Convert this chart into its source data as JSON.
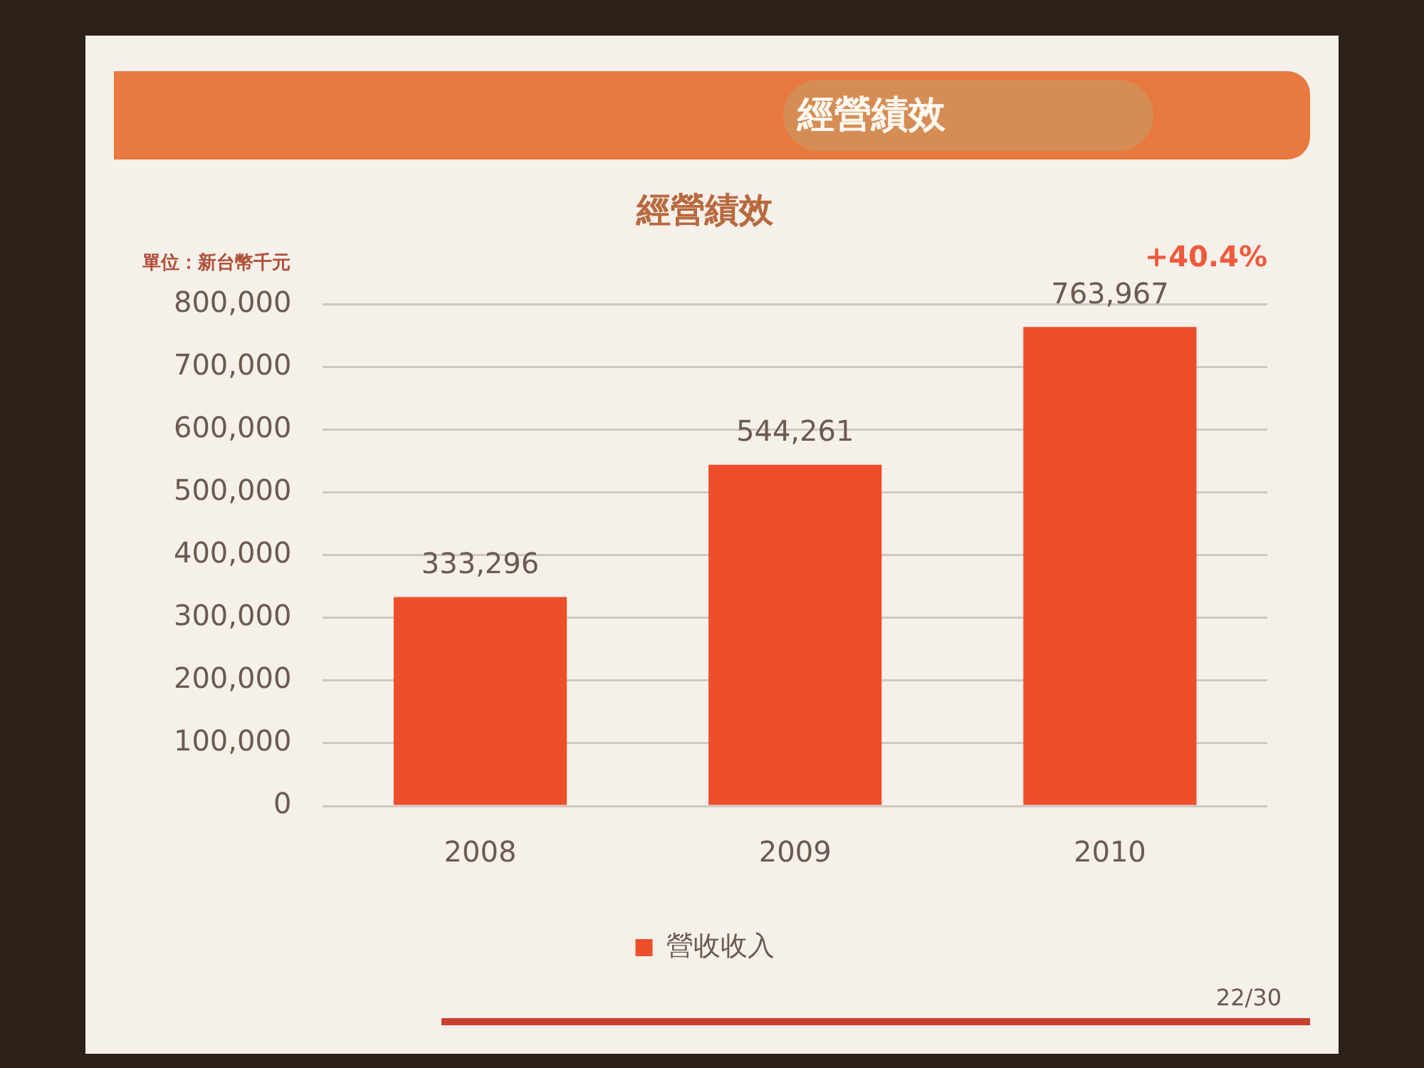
{
  "chart_data": {
    "type": "bar",
    "title": "經營績效",
    "subtitle": "經營績效",
    "ylabel": "單位：新台幣千元",
    "categories": [
      "2008",
      "2009",
      "2010"
    ],
    "series": [
      {
        "name": "營收收入",
        "color": "#ee4f2a",
        "values": [
          333296,
          544261,
          763967
        ],
        "value_labels": [
          "333,296",
          "544,261",
          "763,967"
        ]
      }
    ],
    "ylim": [
      0,
      800000
    ],
    "yticks": [
      0,
      {
        "value": 100000,
        "label": "100,000"
      },
      {
        "value": 200000,
        "label": "200,000"
      },
      {
        "value": 300000,
        "label": "300,000"
      },
      {
        "value": 400000,
        "label": "400,000"
      },
      {
        "value": 500000,
        "label": "500,000"
      },
      {
        "value": 600000,
        "label": "600,000"
      },
      {
        "value": 700000,
        "label": "700,000"
      },
      {
        "value": 800000,
        "label": "800,000"
      }
    ],
    "grid": "y",
    "legend": "bottom",
    "annotations": [
      "+40.4%",
      "22/30"
    ]
  }
}
